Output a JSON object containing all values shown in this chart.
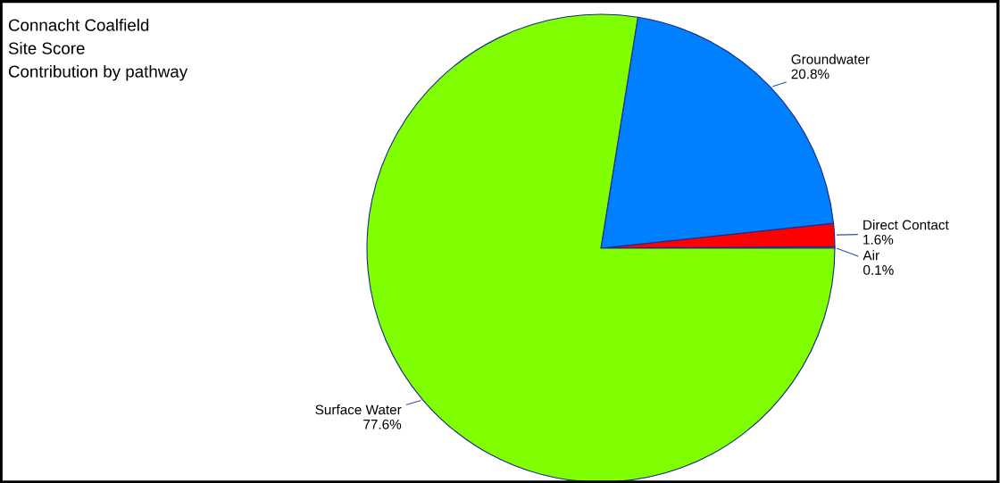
{
  "chart_data": {
    "type": "pie",
    "title": "Connacht Coalfield",
    "subtitle": "Site Score",
    "annotations": [
      "Contribution by pathway"
    ],
    "categories": [
      "Air",
      "Direct Contact",
      "Groundwater",
      "Surface Water"
    ],
    "values": [
      0.1,
      1.6,
      20.8,
      77.6
    ],
    "colors": [
      "#ffff00",
      "#ff0000",
      "#0080ff",
      "#80ff00"
    ],
    "value_labels": [
      "0.1%",
      "1.6%",
      "20.8%",
      "77.6%"
    ]
  }
}
